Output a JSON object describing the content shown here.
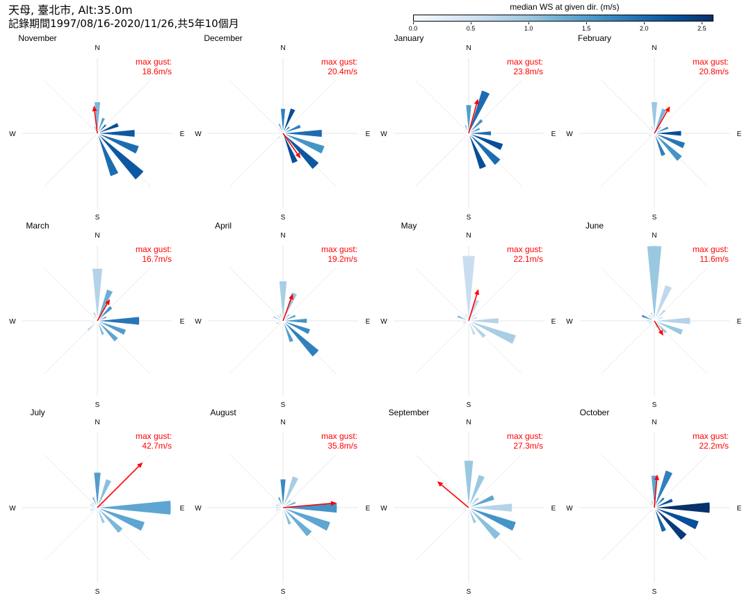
{
  "header": {
    "title_line1": "天母, 臺北市, Alt:35.0m",
    "title_line2": "記錄期間1997/08/16-2020/11/26,共5年10個月"
  },
  "colorbar": {
    "title": "median WS at given dir. (m/s)",
    "min": 0.0,
    "max": 2.6,
    "ticks": [
      "0.0",
      "0.5",
      "1.0",
      "1.5",
      "2.0",
      "2.5"
    ],
    "colors": [
      "#f7fbff",
      "#deebf7",
      "#c6dbef",
      "#9ecae1",
      "#6baed6",
      "#4292c6",
      "#2171b5",
      "#08519c",
      "#08306b"
    ]
  },
  "compass_labels": {
    "n": "N",
    "e": "E",
    "s": "S",
    "w": "W"
  },
  "gust_label": "max gust:",
  "arrow_color": "#ff0000",
  "chart_data": {
    "type": "polar_bar",
    "directions_deg": [
      0,
      22.5,
      45,
      67.5,
      90,
      112.5,
      135,
      157.5,
      180,
      202.5,
      225,
      247.5,
      270,
      292.5,
      315,
      337.5
    ],
    "frequency_scale_max": 1.0,
    "panels": [
      {
        "month": "November",
        "max_gust": "18.6m/s",
        "gust_dir_deg": 353,
        "gust_speed": 18.6,
        "freq": [
          0.42,
          0.22,
          0.16,
          0.3,
          0.5,
          0.58,
          0.8,
          0.6,
          0.05,
          0.02,
          0.02,
          0.02,
          0.03,
          0.05,
          0.06,
          0.1
        ],
        "ws": [
          1.2,
          1.5,
          2.0,
          2.3,
          2.2,
          2.0,
          2.2,
          2.0,
          0.6,
          0.5,
          0.5,
          0.5,
          0.5,
          0.7,
          1.0,
          1.2
        ]
      },
      {
        "month": "December",
        "max_gust": "20.4m/s",
        "gust_dir_deg": 145,
        "gust_speed": 20.4,
        "freq": [
          0.33,
          0.35,
          0.12,
          0.25,
          0.52,
          0.58,
          0.62,
          0.42,
          0.05,
          0.04,
          0.1,
          0.05,
          0.04,
          0.06,
          0.08,
          0.14
        ],
        "ws": [
          1.8,
          2.3,
          2.0,
          1.8,
          2.0,
          1.6,
          2.2,
          2.3,
          0.5,
          0.6,
          0.8,
          0.6,
          0.6,
          0.7,
          0.9,
          1.3
        ]
      },
      {
        "month": "January",
        "max_gust": "23.8m/s",
        "gust_dir_deg": 15,
        "gust_speed": 23.8,
        "freq": [
          0.38,
          0.6,
          0.25,
          0.16,
          0.3,
          0.48,
          0.55,
          0.5,
          0.05,
          0.05,
          0.06,
          0.04,
          0.03,
          0.05,
          0.07,
          0.12
        ],
        "ws": [
          1.5,
          2.0,
          1.6,
          1.6,
          2.0,
          2.3,
          2.0,
          2.3,
          0.5,
          0.7,
          0.6,
          0.5,
          0.5,
          0.6,
          0.9,
          1.2
        ]
      },
      {
        "month": "February",
        "max_gust": "20.8m/s",
        "gust_dir_deg": 30,
        "gust_speed": 20.8,
        "freq": [
          0.42,
          0.35,
          0.12,
          0.2,
          0.36,
          0.43,
          0.48,
          0.32,
          0.04,
          0.04,
          0.05,
          0.08,
          0.06,
          0.05,
          0.06,
          0.1
        ],
        "ws": [
          1.0,
          1.2,
          1.2,
          1.6,
          2.3,
          1.9,
          1.6,
          1.8,
          0.5,
          0.5,
          0.6,
          0.9,
          0.7,
          0.6,
          0.7,
          0.9
        ]
      },
      {
        "month": "March",
        "max_gust": "16.7m/s",
        "gust_dir_deg": 30,
        "gust_speed": 16.7,
        "freq": [
          0.7,
          0.44,
          0.26,
          0.13,
          0.56,
          0.4,
          0.36,
          0.2,
          0.05,
          0.06,
          0.18,
          0.08,
          0.05,
          0.06,
          0.08,
          0.12
        ],
        "ws": [
          0.8,
          1.3,
          1.6,
          1.5,
          1.9,
          1.5,
          1.4,
          1.2,
          0.5,
          0.7,
          0.7,
          0.7,
          0.6,
          0.6,
          0.8,
          1.0
        ]
      },
      {
        "month": "April",
        "max_gust": "19.2m/s",
        "gust_dir_deg": 20,
        "gust_speed": 19.2,
        "freq": [
          0.53,
          0.4,
          0.12,
          0.18,
          0.32,
          0.38,
          0.62,
          0.3,
          0.05,
          0.05,
          0.08,
          0.1,
          0.08,
          0.14,
          0.1,
          0.1
        ],
        "ws": [
          0.9,
          1.0,
          1.1,
          1.4,
          1.6,
          1.7,
          1.8,
          1.5,
          0.6,
          0.6,
          0.7,
          0.9,
          0.6,
          0.8,
          0.9,
          0.9
        ]
      },
      {
        "month": "May",
        "max_gust": "22.1m/s",
        "gust_dir_deg": 17,
        "gust_speed": 22.1,
        "freq": [
          0.87,
          0.3,
          0.12,
          0.12,
          0.4,
          0.66,
          0.3,
          0.2,
          0.04,
          0.04,
          0.06,
          0.08,
          0.08,
          0.16,
          0.08,
          0.1
        ],
        "ws": [
          0.6,
          0.7,
          0.7,
          0.8,
          0.8,
          0.9,
          0.8,
          0.7,
          0.5,
          0.5,
          0.6,
          1.2,
          0.8,
          1.2,
          0.7,
          0.8
        ]
      },
      {
        "month": "June",
        "max_gust": "11.6m/s",
        "gust_dir_deg": 149,
        "gust_speed": 11.6,
        "freq": [
          1.0,
          0.5,
          0.2,
          0.12,
          0.48,
          0.4,
          0.22,
          0.1,
          0.04,
          0.05,
          0.08,
          0.08,
          0.1,
          0.18,
          0.1,
          0.12
        ],
        "ws": [
          1.0,
          0.7,
          0.7,
          0.7,
          0.8,
          1.0,
          1.0,
          0.9,
          0.5,
          0.5,
          0.8,
          1.2,
          1.0,
          1.6,
          0.9,
          0.8
        ]
      },
      {
        "month": "July",
        "max_gust": "42.7m/s",
        "gust_dir_deg": 45,
        "gust_speed": 42.7,
        "freq": [
          0.47,
          0.4,
          0.12,
          0.1,
          0.98,
          0.66,
          0.44,
          0.22,
          0.04,
          0.05,
          0.06,
          0.1,
          0.08,
          0.1,
          0.1,
          0.15
        ],
        "ws": [
          1.5,
          1.1,
          1.0,
          1.0,
          1.4,
          1.4,
          1.2,
          1.0,
          0.5,
          0.6,
          0.7,
          0.9,
          0.8,
          1.0,
          0.9,
          1.2
        ]
      },
      {
        "month": "August",
        "max_gust": "35.8m/s",
        "gust_dir_deg": 85,
        "gust_speed": 35.8,
        "freq": [
          0.38,
          0.44,
          0.14,
          0.18,
          0.72,
          0.66,
          0.5,
          0.24,
          0.04,
          0.05,
          0.06,
          0.1,
          0.1,
          0.1,
          0.08,
          0.15
        ],
        "ws": [
          1.7,
          0.9,
          0.9,
          1.2,
          1.6,
          1.4,
          1.3,
          1.1,
          0.5,
          0.6,
          0.7,
          0.8,
          0.9,
          1.0,
          0.8,
          1.4
        ]
      },
      {
        "month": "September",
        "max_gust": "27.3m/s",
        "gust_dir_deg": 310,
        "gust_speed": 27.3,
        "freq": [
          0.63,
          0.46,
          0.18,
          0.36,
          0.58,
          0.66,
          0.55,
          0.22,
          0.04,
          0.05,
          0.07,
          0.08,
          0.05,
          0.06,
          0.06,
          0.08
        ],
        "ws": [
          1.0,
          1.0,
          0.9,
          1.4,
          0.8,
          1.6,
          1.1,
          1.0,
          0.5,
          0.5,
          0.6,
          0.6,
          0.5,
          0.6,
          0.7,
          0.8
        ]
      },
      {
        "month": "October",
        "max_gust": "22.2m/s",
        "gust_dir_deg": 5,
        "gust_speed": 22.2,
        "freq": [
          0.43,
          0.52,
          0.18,
          0.26,
          0.74,
          0.62,
          0.56,
          0.34,
          0.05,
          0.05,
          0.08,
          0.05,
          0.05,
          0.06,
          0.08,
          0.1
        ],
        "ws": [
          1.4,
          1.8,
          1.9,
          2.2,
          2.6,
          2.3,
          2.5,
          2.1,
          0.6,
          0.6,
          0.8,
          0.6,
          0.5,
          0.6,
          0.9,
          1.1
        ]
      }
    ]
  }
}
